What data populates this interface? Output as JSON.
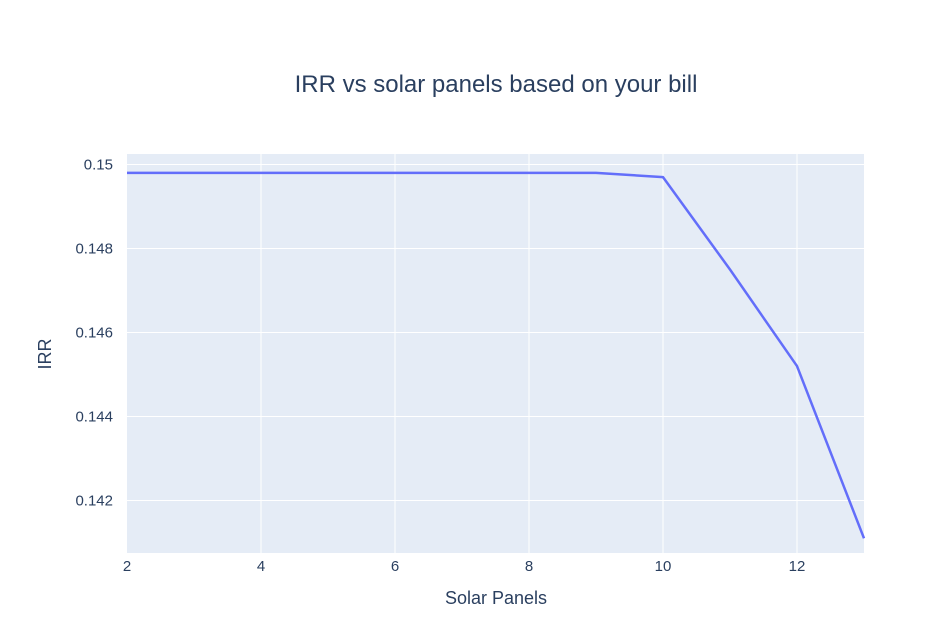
{
  "chart_data": {
    "type": "line",
    "title": "IRR vs solar panels based on your bill",
    "xlabel": "Solar Panels",
    "ylabel": "IRR",
    "xlim": [
      2,
      13
    ],
    "ylim": [
      0.14075,
      0.15025
    ],
    "x_ticks": [
      2,
      4,
      6,
      8,
      10,
      12
    ],
    "x_tick_labels": [
      "2",
      "4",
      "6",
      "8",
      "10",
      "12"
    ],
    "y_ticks": [
      0.142,
      0.144,
      0.146,
      0.148,
      0.15
    ],
    "y_tick_labels": [
      "0.142",
      "0.144",
      "0.146",
      "0.148",
      "0.15"
    ],
    "grid": true,
    "legend": "none",
    "colors": {
      "plot_background": "#e5ecf6",
      "grid": "#ffffff",
      "line": "#636efa",
      "text": "#2a3f5f"
    },
    "x": [
      2,
      3,
      4,
      5,
      6,
      7,
      8,
      9,
      10,
      11,
      12,
      13
    ],
    "series": [
      {
        "values": [
          0.1498,
          0.1498,
          0.1498,
          0.1498,
          0.1498,
          0.1498,
          0.1498,
          0.1498,
          0.1497,
          0.1475,
          0.1452,
          0.1411
        ]
      }
    ]
  }
}
